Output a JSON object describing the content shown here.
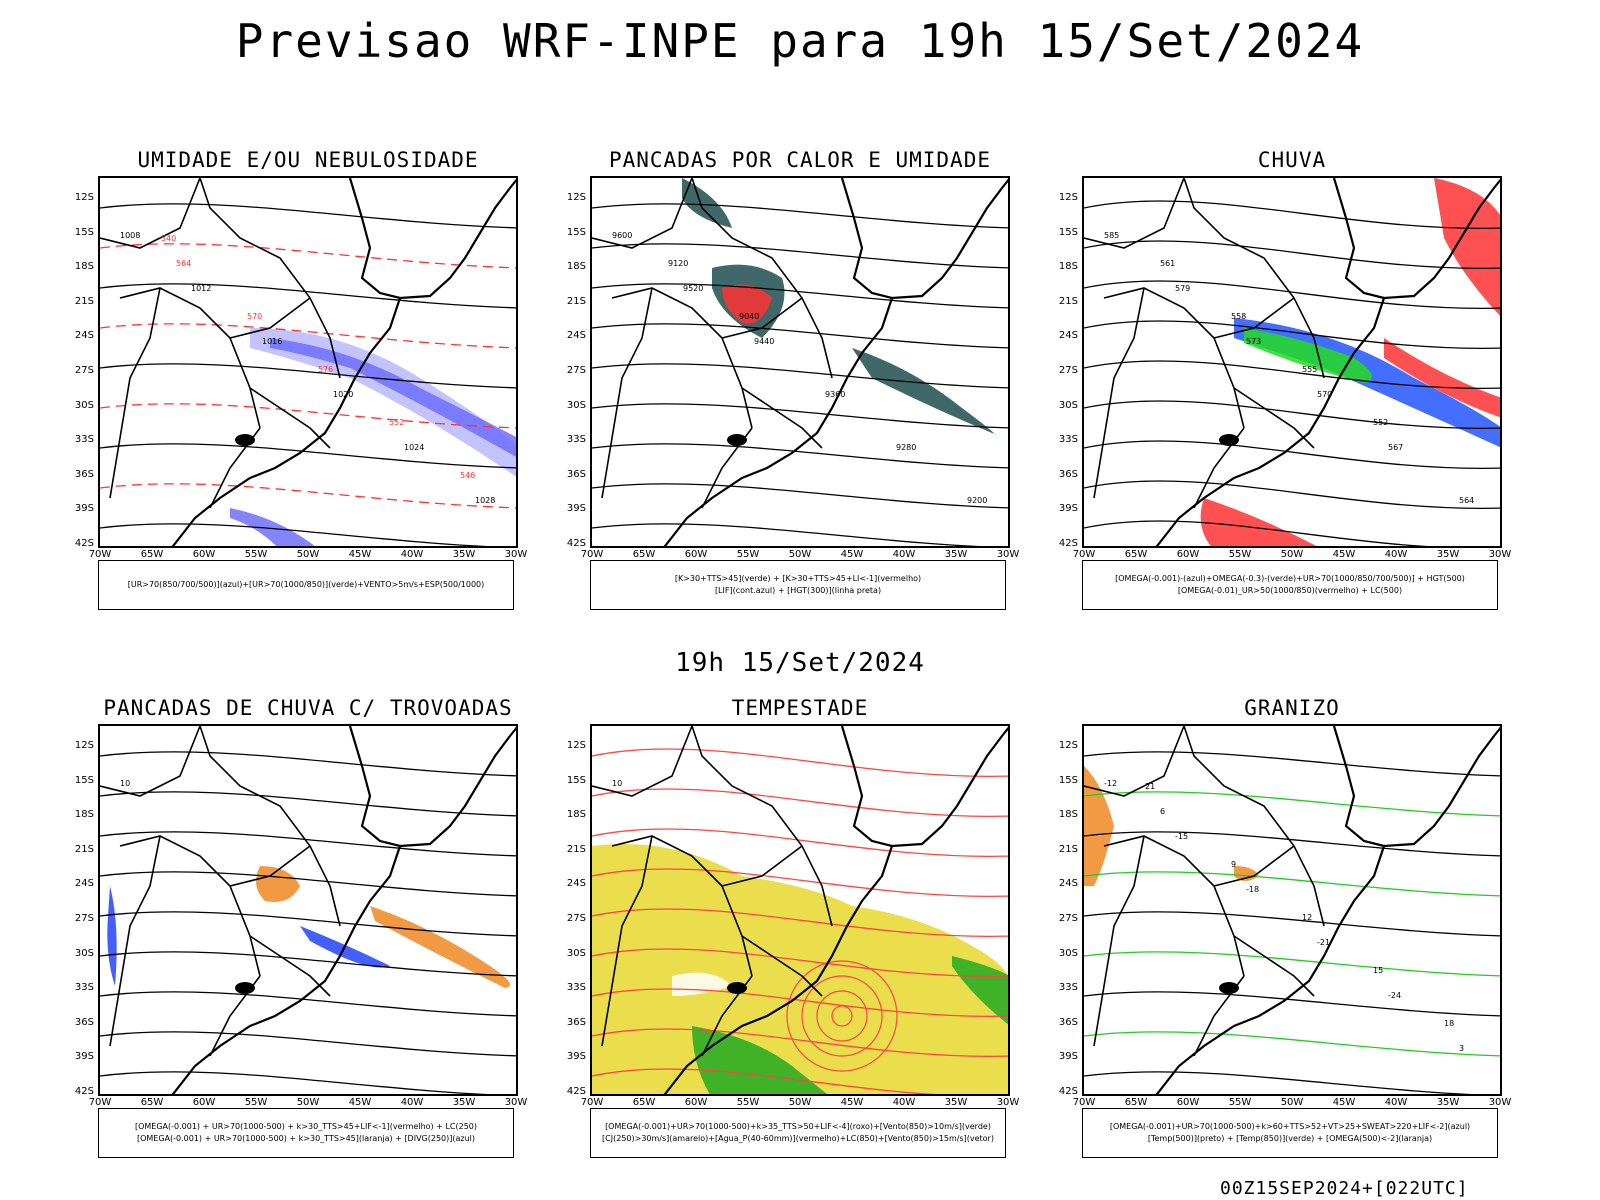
{
  "header": {
    "title": "Previsao WRF-INPE  para 19h 15/Set/2024"
  },
  "subheader": {
    "title": "19h 15/Set/2024"
  },
  "footer": {
    "stamp": "00Z15SEP2024+[022UTC]"
  },
  "axes": {
    "lat_labels": [
      "12S",
      "15S",
      "18S",
      "21S",
      "24S",
      "27S",
      "30S",
      "33S",
      "36S",
      "39S",
      "42S"
    ],
    "lon_labels": [
      "70W",
      "65W",
      "60W",
      "55W",
      "50W",
      "45W",
      "40W",
      "35W",
      "30W"
    ]
  },
  "panels": [
    {
      "title": "UMIDADE E/OU NEBULOSIDADE",
      "legend": [
        "[UR>70(850/700/500)](azul)+[UR>70(1000/850)](verde)+VENTO>5m/s+ESP(500/1000)"
      ],
      "contour_labels": [
        "1008",
        "1012",
        "1016",
        "1020",
        "1024",
        "1028",
        "564",
        "570",
        "576",
        "552",
        "546",
        "540"
      ],
      "colors": {
        "fill1": "#6f6fff",
        "fill2": "#b8b8ff",
        "line1": "#ff3333",
        "line2": "#22cc22"
      }
    },
    {
      "title": "PANCADAS POR CALOR E UMIDADE",
      "legend": [
        "[K>30+TTS>45](verde) + [K>30+TTS>45+LI<-1](vermelho)",
        "[LIF](cont.azul) + [HGT(300)](linha preta)"
      ],
      "contour_labels": [
        "9600",
        "9520",
        "9440",
        "9360",
        "9280",
        "9200",
        "9120",
        "9040"
      ],
      "colors": {
        "fill1": "#1f4d4d",
        "fill2": "#ff3333",
        "line1": "#2244ff",
        "line2": "#000000"
      }
    },
    {
      "title": "CHUVA",
      "legend": [
        "[OMEGA(-0.001)-(azul)+OMEGA(-0.3)-(verde)+UR>70(1000/850/700/500)] + HGT(500)",
        "[OMEGA(-0.01)_UR>50(1000/850)(vermelho) + LC(500)"
      ],
      "contour_labels": [
        "585",
        "579",
        "573",
        "570",
        "567",
        "564",
        "561",
        "558",
        "555",
        "552"
      ],
      "colors": {
        "fill1": "#2255ff",
        "fill2": "#22dd22",
        "line1": "#ff3333",
        "line2": "#000000"
      }
    },
    {
      "title": "PANCADAS DE CHUVA C/ TROVOADAS",
      "legend": [
        "[OMEGA(-0.001) + UR>70(1000-500) + k>30_TTS>45+LIF<-1](vermelho) + LC(250)",
        "[OMEGA(-0.001) + UR>70(1000-500) + k>30_TTS>45](laranja) + [DIVG(250)](azul)"
      ],
      "contour_labels": [
        "10"
      ],
      "colors": {
        "fill1": "#2244ff",
        "fill2": "#ee8822",
        "line1": "#2244ff",
        "line2": "#000000"
      }
    },
    {
      "title": "TEMPESTADE",
      "legend": [
        "[OMEGA(-0.001)+UR>70(1000-500)+k>35_TTS>50+LIF<-4](roxo)+[Vento(850)>10m/s](verde)",
        "[CJ(250)>30m/s](amarelo)+[Agua_P(40-60mm)](vermelho)+LC(850)+[Vento(850)>15m/s](vetor)"
      ],
      "contour_labels": [
        "10"
      ],
      "colors": {
        "fill1": "#e6d82e",
        "fill2": "#22aa22",
        "line1": "#ff4444",
        "line2": "#000000"
      }
    },
    {
      "title": "GRANIZO",
      "legend": [
        "[OMEGA(-0.001)+UR>70(1000-500)+k>60+TTS>52+VT>25+SWEAT>220+LIF<-2](azul)",
        "[Temp(500)](preto) + [Temp(850)](verde) + [OMEGA(500)<-2](laranja)"
      ],
      "contour_labels": [
        "-12",
        "-15",
        "-18",
        "-21",
        "-24",
        "3",
        "6",
        "9",
        "12",
        "15",
        "18",
        "21"
      ],
      "colors": {
        "fill1": "#ee8822",
        "fill2": "#22cc22",
        "line1": "#22cc22",
        "line2": "#000000"
      }
    }
  ]
}
